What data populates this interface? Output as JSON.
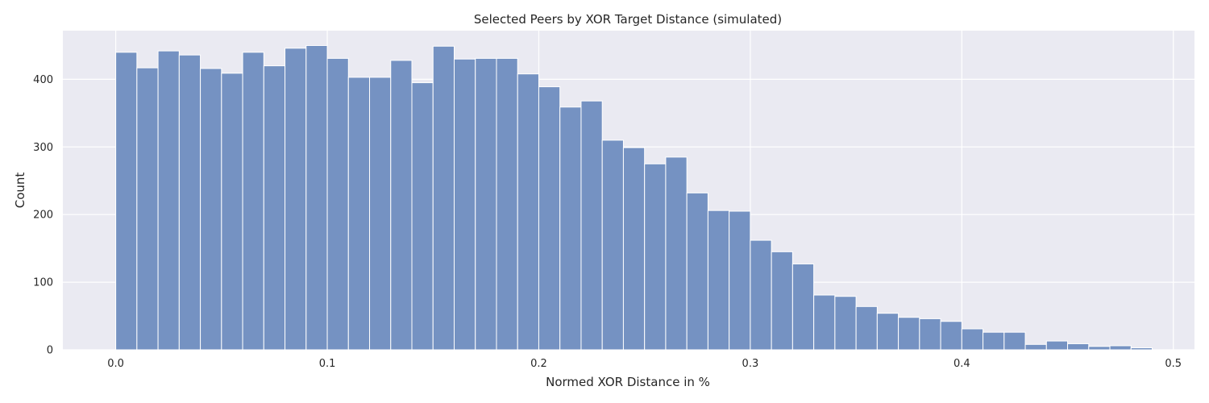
{
  "chart_data": {
    "type": "bar",
    "title": "Selected Peers by XOR Target Distance (simulated)",
    "xlabel": "Normed XOR Distance in %",
    "ylabel": "Count",
    "xlim": [
      -0.025,
      0.51
    ],
    "ylim": [
      0,
      472
    ],
    "bin_start": 0.0,
    "bin_width": 0.01,
    "x_ticks": [
      0.0,
      0.1,
      0.2,
      0.3,
      0.4,
      0.5
    ],
    "x_tick_labels": [
      "0.0",
      "0.1",
      "0.2",
      "0.3",
      "0.4",
      "0.5"
    ],
    "y_ticks": [
      0,
      100,
      200,
      300,
      400
    ],
    "y_tick_labels": [
      "0",
      "100",
      "200",
      "300",
      "400"
    ],
    "values": [
      440,
      417,
      442,
      436,
      416,
      409,
      440,
      420,
      446,
      450,
      431,
      403,
      403,
      428,
      395,
      449,
      430,
      431,
      431,
      408,
      389,
      359,
      368,
      310,
      299,
      275,
      285,
      232,
      206,
      205,
      162,
      145,
      127,
      81,
      79,
      64,
      54,
      48,
      46,
      42,
      31,
      26,
      26,
      8,
      13,
      9,
      5,
      6,
      3
    ],
    "grid": true,
    "legend": "none",
    "colors": {
      "bar_fill": "#7592c2",
      "bar_edge": "#ffffff",
      "plot_background": "#eaeaf2",
      "grid": "#ffffff"
    }
  }
}
